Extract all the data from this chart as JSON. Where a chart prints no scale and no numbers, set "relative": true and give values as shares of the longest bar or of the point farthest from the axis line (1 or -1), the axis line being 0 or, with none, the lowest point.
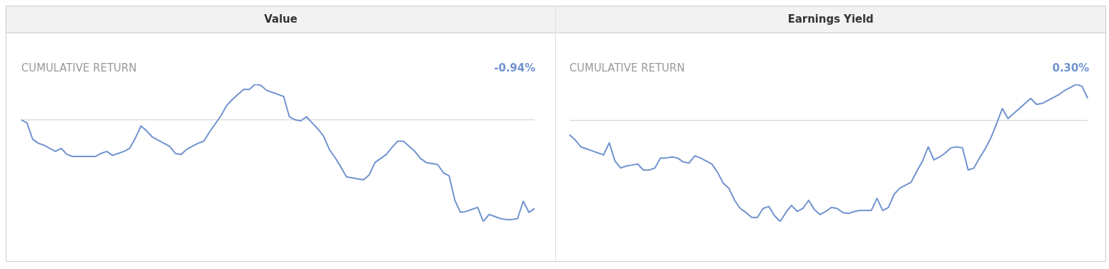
{
  "chart_data": [
    {
      "type": "line",
      "title": "Value",
      "subtitle": "CUMULATIVE RETURN",
      "annotations": [
        "-0.94%"
      ],
      "relative": true,
      "legend": false,
      "tick_labels": false,
      "marker": "none",
      "categories": [
        null,
        null,
        null,
        null,
        null,
        null,
        null,
        null,
        null,
        null,
        null,
        null,
        null,
        null,
        null,
        null,
        null,
        null,
        null,
        null,
        null,
        null,
        null,
        null,
        null,
        null,
        null,
        null,
        null,
        null,
        null,
        null,
        null,
        null,
        null,
        null,
        null,
        null,
        null,
        null,
        null,
        null,
        null,
        null,
        null,
        null,
        null,
        null,
        null,
        null,
        null,
        null,
        null,
        null,
        null,
        null,
        null,
        null,
        null,
        null,
        null,
        null,
        null,
        null,
        null,
        null,
        null,
        null,
        null,
        null,
        null,
        null,
        null,
        null,
        null,
        null,
        null,
        null,
        null,
        null,
        null,
        null,
        null,
        null,
        null,
        null,
        null,
        null,
        null,
        null,
        null
      ],
      "ref_lines": [
        {
          "axis": "y",
          "value": 0,
          "color": "#dddddd"
        }
      ],
      "series": [
        {
          "color": "#7092cf",
          "values": [
            0,
            -0.03,
            -0.19,
            -0.23,
            -0.25,
            -0.28,
            -0.31,
            -0.28,
            -0.34,
            -0.36,
            -0.36,
            -0.36,
            -0.36,
            -0.36,
            -0.33,
            -0.31,
            -0.35,
            -0.33,
            -0.31,
            -0.28,
            -0.18,
            -0.06,
            -0.11,
            -0.17,
            -0.2,
            -0.23,
            -0.26,
            -0.33,
            -0.34,
            -0.29,
            -0.26,
            -0.23,
            -0.21,
            -0.12,
            -0.04,
            0.04,
            0.14,
            0.2,
            0.25,
            0.3,
            0.3,
            0.35,
            0.34,
            0.29,
            0.27,
            0.25,
            0.23,
            0.03,
            0,
            -0.01,
            0.03,
            -0.03,
            -0.09,
            -0.16,
            -0.29,
            -0.37,
            -0.46,
            -0.56,
            -0.57,
            -0.58,
            -0.59,
            -0.54,
            -0.42,
            -0.38,
            -0.34,
            -0.27,
            -0.21,
            -0.21,
            -0.26,
            -0.31,
            -0.38,
            -0.42,
            -0.43,
            -0.44,
            -0.52,
            -0.55,
            -0.79,
            -0.91,
            -0.9,
            -0.88,
            -0.86,
            -1,
            -0.93,
            -0.95,
            -0.97,
            -0.98,
            -0.98,
            -0.97,
            -0.8,
            -0.91,
            -0.87
          ]
        }
      ]
    },
    {
      "type": "line",
      "title": "Earnings Yield",
      "subtitle": "CUMULATIVE RETURN",
      "annotations": [
        "0.30%"
      ],
      "relative": true,
      "legend": false,
      "tick_labels": false,
      "marker": "none",
      "categories": [
        null,
        null,
        null,
        null,
        null,
        null,
        null,
        null,
        null,
        null,
        null,
        null,
        null,
        null,
        null,
        null,
        null,
        null,
        null,
        null,
        null,
        null,
        null,
        null,
        null,
        null,
        null,
        null,
        null,
        null,
        null,
        null,
        null,
        null,
        null,
        null,
        null,
        null,
        null,
        null,
        null,
        null,
        null,
        null,
        null,
        null,
        null,
        null,
        null,
        null,
        null,
        null,
        null,
        null,
        null,
        null,
        null,
        null,
        null,
        null,
        null,
        null,
        null,
        null,
        null,
        null,
        null,
        null,
        null,
        null,
        null,
        null,
        null,
        null,
        null,
        null,
        null,
        null,
        null,
        null,
        null,
        null,
        null,
        null,
        null,
        null,
        null,
        null,
        null,
        null,
        null,
        null
      ],
      "ref_lines": [
        {
          "axis": "y",
          "value": 0,
          "color": "#dddddd"
        }
      ],
      "series": [
        {
          "color": "#7092cf",
          "values": [
            -0.14,
            -0.19,
            -0.26,
            -0.28,
            -0.3,
            -0.32,
            -0.34,
            -0.22,
            -0.4,
            -0.47,
            -0.45,
            -0.44,
            -0.43,
            -0.49,
            -0.49,
            -0.47,
            -0.37,
            -0.37,
            -0.36,
            -0.37,
            -0.41,
            -0.42,
            -0.35,
            -0.37,
            -0.4,
            -0.43,
            -0.51,
            -0.62,
            -0.67,
            -0.79,
            -0.87,
            -0.91,
            -0.96,
            -0.96,
            -0.87,
            -0.85,
            -0.94,
            -1,
            -0.91,
            -0.84,
            -0.9,
            -0.87,
            -0.79,
            -0.88,
            -0.93,
            -0.9,
            -0.86,
            -0.87,
            -0.91,
            -0.92,
            -0.9,
            -0.89,
            -0.89,
            -0.89,
            -0.77,
            -0.89,
            -0.86,
            -0.73,
            -0.67,
            -0.64,
            -0.61,
            -0.5,
            -0.4,
            -0.26,
            -0.39,
            -0.36,
            -0.32,
            -0.27,
            -0.26,
            -0.27,
            -0.49,
            -0.47,
            -0.37,
            -0.28,
            -0.17,
            -0.03,
            0.12,
            0.02,
            0.07,
            0.12,
            0.17,
            0.22,
            0.16,
            0.17,
            0.2,
            0.23,
            0.26,
            0.3,
            0.33,
            0.36,
            0.34,
            0.22
          ]
        }
      ]
    }
  ]
}
